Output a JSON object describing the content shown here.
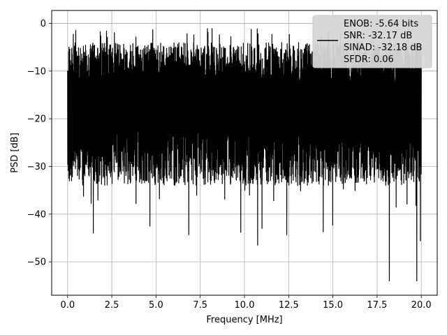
{
  "chart_data": {
    "type": "line",
    "title": "",
    "xlabel": "Frequency [MHz]",
    "ylabel": "PSD [dB]",
    "xlim": [
      -0.9,
      20.9
    ],
    "ylim": [
      -57,
      2.7
    ],
    "xticks": [
      0.0,
      2.5,
      5.0,
      7.5,
      10.0,
      12.5,
      15.0,
      17.5,
      20.0
    ],
    "xtick_labels": [
      "0.0",
      "2.5",
      "5.0",
      "7.5",
      "10.0",
      "12.5",
      "15.0",
      "17.5",
      "20.0"
    ],
    "yticks": [
      0,
      -10,
      -20,
      -30,
      -40,
      -50
    ],
    "ytick_labels": [
      "0",
      "−10",
      "−20",
      "−30",
      "−40",
      "−50"
    ],
    "grid": true,
    "legend": {
      "placement": "top-right",
      "entries": [
        "ENOB: -5.64 bits",
        "SNR: -32.17 dB",
        "SINAD: -32.18 dB",
        "SFDR: 0.06"
      ]
    },
    "series": [
      {
        "color": "#000000",
        "x_range": [
          0.0,
          20.0
        ],
        "envelope": {
          "upper_typical": -4,
          "lower_typical": -31,
          "max_peak": -1,
          "min_dips": [
            {
              "x": 1.45,
              "y": -44
            },
            {
              "x": 4.65,
              "y": -42.5
            },
            {
              "x": 6.85,
              "y": -44.3
            },
            {
              "x": 9.8,
              "y": -43.8
            },
            {
              "x": 10.75,
              "y": -46.5
            },
            {
              "x": 11.0,
              "y": -43
            },
            {
              "x": 12.4,
              "y": -44.3
            },
            {
              "x": 14.45,
              "y": -43.7
            },
            {
              "x": 15.0,
              "y": -42.3
            },
            {
              "x": 18.2,
              "y": -54
            },
            {
              "x": 19.75,
              "y": -54
            },
            {
              "x": 19.95,
              "y": -45.6
            }
          ]
        }
      }
    ]
  }
}
